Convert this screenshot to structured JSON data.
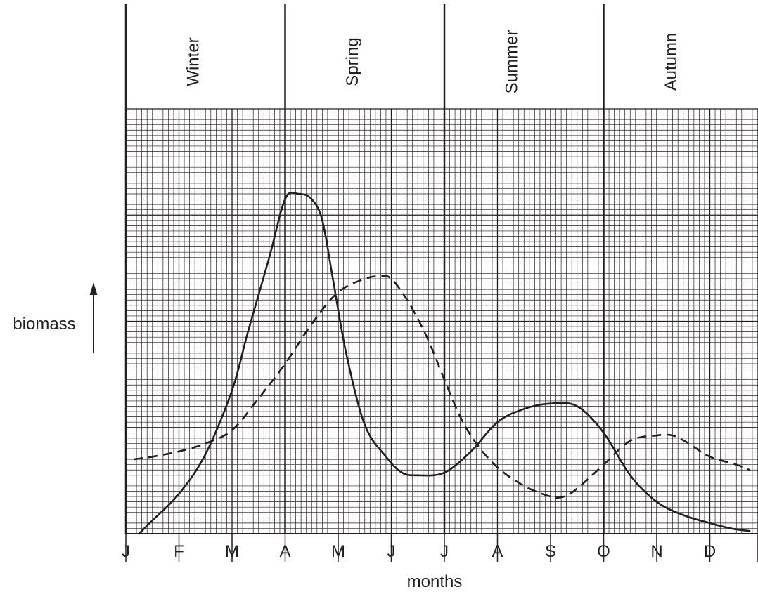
{
  "chart_data": {
    "type": "line",
    "title": "",
    "xlabel": "months",
    "ylabel": "biomass",
    "seasons": [
      "Winter",
      "Spring",
      "Summer",
      "Autumn"
    ],
    "categories": [
      "J",
      "F",
      "M",
      "A",
      "M",
      "J",
      "J",
      "A",
      "S",
      "O",
      "N",
      "D"
    ],
    "x_start": 0.15,
    "ylim": [
      0,
      8
    ],
    "grid": true,
    "legend": "none",
    "colors": {
      "ink": "#231f20",
      "paper": "#ffffff"
    },
    "series": [
      {
        "style": "solid",
        "x": [
          0.25,
          0.5,
          1.0,
          1.5,
          2.0,
          2.3,
          2.7,
          3.0,
          3.25,
          3.5,
          3.7,
          3.9,
          4.15,
          4.5,
          4.9,
          5.2,
          5.5,
          6.0,
          6.5,
          7.0,
          7.5,
          8.0,
          8.5,
          9.0,
          9.5,
          10.0,
          10.5,
          11.0,
          11.3,
          11.5,
          11.75
        ],
        "y": [
          0.0,
          0.25,
          0.75,
          1.5,
          2.7,
          3.8,
          5.2,
          6.3,
          6.4,
          6.3,
          5.9,
          4.8,
          3.4,
          2.05,
          1.45,
          1.15,
          1.1,
          1.15,
          1.55,
          2.1,
          2.35,
          2.45,
          2.4,
          1.9,
          1.1,
          0.6,
          0.35,
          0.2,
          0.12,
          0.08,
          0.05
        ]
      },
      {
        "style": "dashed",
        "x": [
          0.15,
          0.5,
          1.0,
          1.5,
          2.0,
          2.5,
          3.0,
          3.5,
          4.0,
          4.5,
          4.8,
          5.0,
          5.3,
          5.6,
          5.8,
          6.0,
          6.3,
          6.6,
          7.0,
          7.5,
          8.0,
          8.25,
          8.5,
          9.0,
          9.5,
          10.0,
          10.3,
          10.6,
          11.0,
          11.5,
          11.75
        ],
        "y": [
          1.4,
          1.45,
          1.55,
          1.7,
          1.95,
          2.55,
          3.2,
          3.95,
          4.55,
          4.8,
          4.85,
          4.8,
          4.4,
          3.85,
          3.4,
          2.9,
          2.2,
          1.7,
          1.25,
          0.9,
          0.7,
          0.7,
          0.85,
          1.3,
          1.75,
          1.85,
          1.85,
          1.7,
          1.45,
          1.3,
          1.2
        ]
      }
    ]
  }
}
